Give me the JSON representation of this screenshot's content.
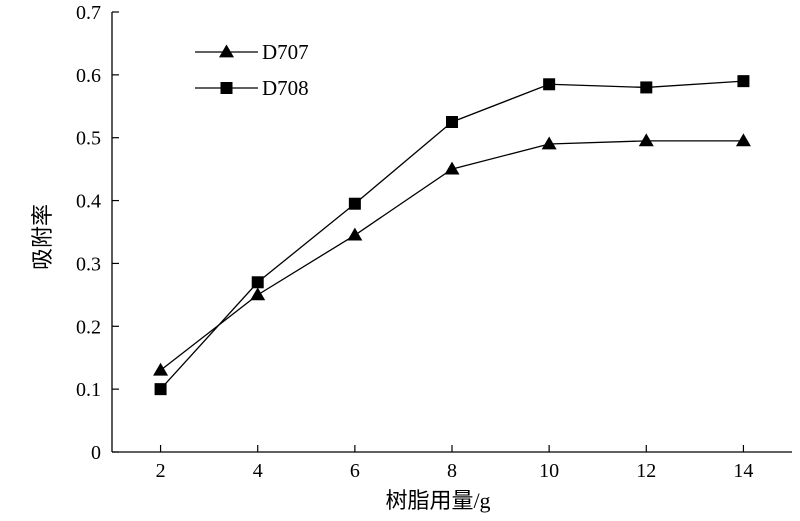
{
  "chart_data": {
    "type": "line",
    "x": [
      2,
      4,
      6,
      8,
      10,
      12,
      14
    ],
    "series": [
      {
        "name": "D707",
        "marker": "triangle",
        "values": [
          0.13,
          0.25,
          0.345,
          0.45,
          0.49,
          0.495,
          0.495
        ]
      },
      {
        "name": "D708",
        "marker": "square",
        "values": [
          0.1,
          0.27,
          0.395,
          0.525,
          0.585,
          0.58,
          0.59
        ]
      }
    ],
    "xlabel": "树脂用量/g",
    "ylabel": "吸附率",
    "xlim": [
      1,
      15
    ],
    "ylim": [
      0,
      0.7
    ],
    "x_ticks": [
      "2",
      "4",
      "6",
      "8",
      "10",
      "12",
      "14"
    ],
    "y_ticks": [
      "0",
      "0.1",
      "0.2",
      "0.3",
      "0.4",
      "0.5",
      "0.6",
      "0.7"
    ],
    "grid": false,
    "legend_position": "top-left",
    "colors": {
      "line": "#000000",
      "marker": "#000000",
      "axis": "#000000"
    }
  }
}
